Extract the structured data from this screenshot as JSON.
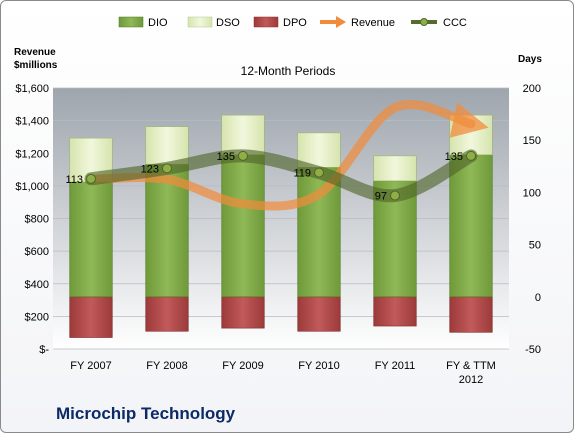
{
  "colors": {
    "dio": "#7fa84a",
    "dio_dark": "#4f7a22",
    "dso": "#e3edc3",
    "dso_edge": "#b5c884",
    "dpo": "#b24b4b",
    "dpo_dark": "#8a2f2f",
    "revenue": "#f08c3c",
    "ccc": "#556b2f",
    "ccc_point": "#8fae45",
    "plot_bg_top": "#9ea5ad",
    "plot_bg_bottom": "#ffffff"
  },
  "legend": {
    "dio": "DIO",
    "dso": "DSO",
    "dpo": "DPO",
    "revenue": "Revenue",
    "ccc": "CCC"
  },
  "chart_data": {
    "type": "bar",
    "subtitle": "12-Month Periods",
    "company": "Microchip Technology",
    "left_axis_title_line1": "Revenue",
    "left_axis_title_line2": "$millions",
    "right_axis_title": "Days",
    "left_ylim": [
      0,
      1600
    ],
    "left_ticks": [
      "$-",
      "$200",
      "$400",
      "$600",
      "$800",
      "$1,000",
      "$1,200",
      "$1,400",
      "$1,600"
    ],
    "right_ylim": [
      -50,
      200
    ],
    "right_ticks": [
      "-50",
      "0",
      "50",
      "100",
      "150",
      "200"
    ],
    "categories_line1": [
      "FY 2007",
      "FY 2008",
      "FY 2009",
      "FY 2010",
      "FY 2011",
      "FY & TTM"
    ],
    "categories_line2": [
      "",
      "",
      "",
      "",
      "",
      "2012"
    ],
    "series": [
      {
        "name": "DIO",
        "values": [
          110,
          127,
          136,
          124,
          111,
          136
        ]
      },
      {
        "name": "DSO",
        "values": [
          42,
          36,
          38,
          33,
          24,
          38
        ]
      },
      {
        "name": "DPO",
        "values": [
          -39,
          -33,
          -30,
          -33,
          -28,
          -34
        ]
      },
      {
        "name": "Revenue",
        "values": [
          1040,
          1040,
          890,
          950,
          1480,
          1380
        ]
      },
      {
        "name": "CCC",
        "values": [
          113,
          123,
          135,
          119,
          97,
          135
        ]
      }
    ],
    "ccc_labels": [
      "113",
      "123",
      "135",
      "119",
      "97",
      "135"
    ]
  }
}
